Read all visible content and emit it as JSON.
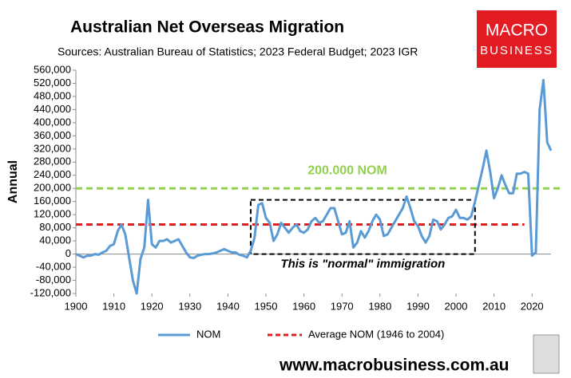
{
  "chart_data": {
    "type": "line",
    "title": "Australian Net Overseas Migration",
    "subtitle": "Sources: Australian Bureau of Statistics; 2023 Federal Budget; 2023 IGR",
    "logo": [
      "MACRO",
      "BUSINESS"
    ],
    "ylabel": "Annual",
    "footer": "www.macrobusiness.com.au",
    "xlim": [
      1900,
      2025
    ],
    "xticks": [
      1900,
      1910,
      1920,
      1930,
      1940,
      1950,
      1960,
      1970,
      1980,
      1990,
      2000,
      2010,
      2020
    ],
    "ylim": [
      -120000,
      560000
    ],
    "yticks": [
      {
        "value": -120000,
        "label": "-120,000"
      },
      {
        "value": -80000,
        "label": "-80,000"
      },
      {
        "value": -40000,
        "label": "-40,000"
      },
      0,
      {
        "value": 40000,
        "label": "40,000"
      },
      {
        "value": 80000,
        "label": "80,000"
      },
      {
        "value": 120000,
        "label": "120,000"
      },
      {
        "value": 160000,
        "label": "160,000"
      },
      {
        "value": 200000,
        "label": "200,000"
      },
      {
        "value": 240000,
        "label": "240,000"
      },
      {
        "value": 280000,
        "label": "280,000"
      },
      {
        "value": 320000,
        "label": "320,000"
      },
      {
        "value": 360000,
        "label": "360,000"
      },
      {
        "value": 400000,
        "label": "400,000"
      },
      {
        "value": 440000,
        "label": "440,000"
      },
      {
        "value": 480000,
        "label": "480,000"
      },
      {
        "value": 520000,
        "label": "520,000"
      },
      {
        "value": 560000,
        "label": "560,000"
      }
    ],
    "x": [
      1900,
      1901,
      1902,
      1903,
      1904,
      1905,
      1906,
      1907,
      1908,
      1909,
      1910,
      1911,
      1912,
      1913,
      1914,
      1915,
      1916,
      1917,
      1918,
      1919,
      1920,
      1921,
      1922,
      1923,
      1924,
      1925,
      1926,
      1927,
      1928,
      1929,
      1930,
      1931,
      1932,
      1933,
      1934,
      1935,
      1936,
      1937,
      1938,
      1939,
      1940,
      1941,
      1942,
      1943,
      1944,
      1945,
      1946,
      1947,
      1948,
      1949,
      1950,
      1951,
      1952,
      1953,
      1954,
      1955,
      1956,
      1957,
      1958,
      1959,
      1960,
      1961,
      1962,
      1963,
      1964,
      1965,
      1966,
      1967,
      1968,
      1969,
      1970,
      1971,
      1972,
      1973,
      1974,
      1975,
      1976,
      1977,
      1978,
      1979,
      1980,
      1981,
      1982,
      1983,
      1984,
      1985,
      1986,
      1987,
      1988,
      1989,
      1990,
      1991,
      1992,
      1993,
      1994,
      1995,
      1996,
      1997,
      1998,
      1999,
      2000,
      2001,
      2002,
      2003,
      2004,
      2005,
      2006,
      2007,
      2008,
      2009,
      2010,
      2011,
      2012,
      2013,
      2014,
      2015,
      2016,
      2017,
      2018,
      2019,
      2020,
      2021,
      2022,
      2023,
      2024,
      2025
    ],
    "series": [
      {
        "name": "NOM",
        "color": "#5b9bd5",
        "values": [
          0,
          -5000,
          -10000,
          -5000,
          -5000,
          0,
          -2000,
          5000,
          10000,
          25000,
          30000,
          70000,
          90000,
          60000,
          -10000,
          -80000,
          -120000,
          -15000,
          20000,
          165000,
          30000,
          20000,
          40000,
          40000,
          45000,
          35000,
          40000,
          45000,
          25000,
          5000,
          -10000,
          -12000,
          -5000,
          -2000,
          0,
          0,
          2000,
          5000,
          10000,
          15000,
          10000,
          5000,
          5000,
          -2000,
          -5000,
          -10000,
          10000,
          50000,
          150000,
          155000,
          110000,
          95000,
          40000,
          60000,
          95000,
          80000,
          65000,
          80000,
          90000,
          70000,
          65000,
          75000,
          100000,
          110000,
          95000,
          100000,
          120000,
          140000,
          140000,
          100000,
          60000,
          65000,
          100000,
          20000,
          35000,
          70000,
          50000,
          70000,
          100000,
          120000,
          105000,
          55000,
          60000,
          80000,
          100000,
          120000,
          140000,
          175000,
          140000,
          100000,
          85000,
          55000,
          35000,
          55000,
          105000,
          100000,
          75000,
          90000,
          110000,
          115000,
          135000,
          110000,
          110000,
          105000,
          115000,
          160000,
          210000,
          260000,
          315000,
          250000,
          170000,
          200000,
          240000,
          210000,
          185000,
          185000,
          245000,
          245000,
          250000,
          245000,
          -5000,
          5000,
          440000,
          530000,
          340000,
          315000
        ]
      }
    ],
    "reference_lines": [
      {
        "name": "Average NOM (1946 to 2004)",
        "value": 90000,
        "color": "#e02020",
        "x": [
          1900,
          2018
        ]
      },
      {
        "label": "200.000 NOM",
        "value": 200000,
        "color": "#92d050"
      }
    ],
    "box_annotation": {
      "text": "This is \"normal\" immigration",
      "x": [
        1946,
        2005
      ],
      "y": [
        0,
        165000
      ]
    }
  }
}
